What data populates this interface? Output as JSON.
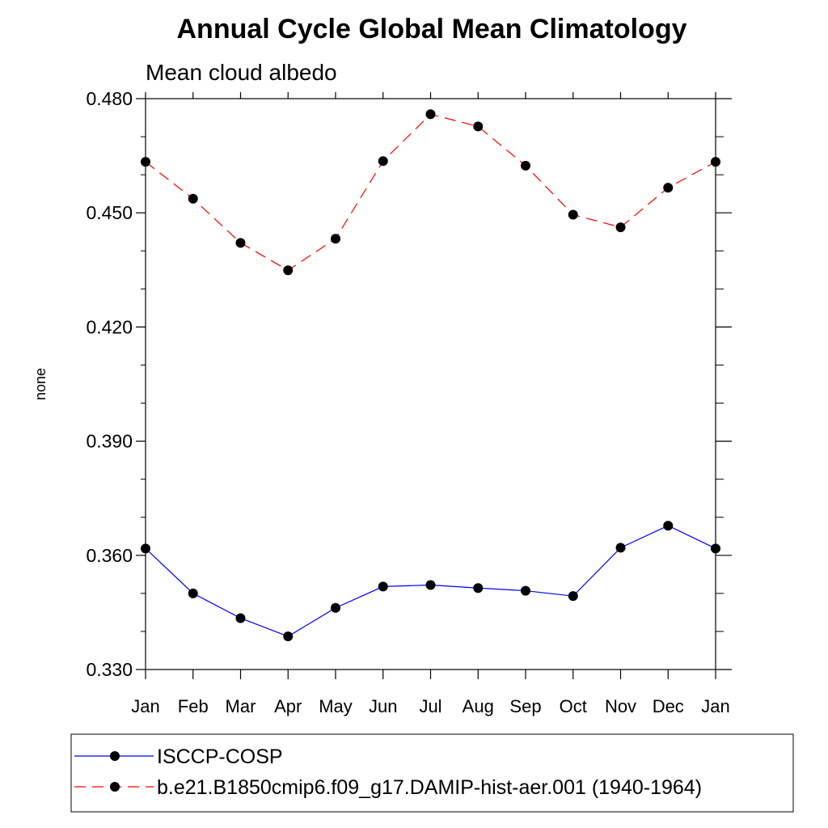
{
  "chart_data": {
    "type": "line",
    "title": "Annual Cycle Global Mean Climatology",
    "subtitle": "Mean cloud albedo",
    "xlabel": "",
    "ylabel": "none",
    "ylim": [
      0.33,
      0.48
    ],
    "yticks": [
      "0.480",
      "0.450",
      "0.420",
      "0.390",
      "0.360",
      "0.330"
    ],
    "categories": [
      "Jan",
      "Feb",
      "Mar",
      "Apr",
      "May",
      "Jun",
      "Jul",
      "Aug",
      "Sep",
      "Oct",
      "Nov",
      "Dec",
      "Jan"
    ],
    "series": [
      {
        "name": "ISCCP-COSP",
        "color": "#0000ff",
        "dash": "solid",
        "values": [
          0.3618,
          0.35,
          0.3435,
          0.3387,
          0.3462,
          0.3518,
          0.3522,
          0.3514,
          0.3507,
          0.3493,
          0.362,
          0.3678,
          0.3618
        ]
      },
      {
        "name": "b.e21.B1850cmip6.f09_g17.DAMIP-hist-aer.001 (1940-1964)",
        "color": "#ff0000",
        "dash": "dashed",
        "values": [
          0.4634,
          0.4537,
          0.4421,
          0.4349,
          0.4432,
          0.4636,
          0.4759,
          0.4727,
          0.4624,
          0.4495,
          0.4462,
          0.4566,
          0.4634
        ]
      }
    ],
    "grid": false,
    "legend_position": "bottom"
  }
}
